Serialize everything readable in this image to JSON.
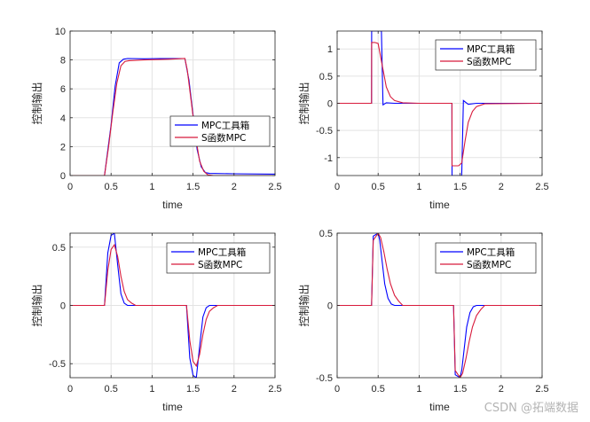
{
  "colors": {
    "series_mpc": "#0000ff",
    "series_s": "#d81b3c",
    "grid": "#e3e3e3",
    "axis": "#262626",
    "background": "#ffffff"
  },
  "watermark": "CSDN @拓端数据",
  "chart_data": [
    {
      "type": "line",
      "xlabel": "time",
      "ylabel": "控制输出",
      "xlim": [
        0,
        2.5
      ],
      "ylim": [
        0,
        10
      ],
      "xticks": [
        0,
        0.5,
        1,
        1.5,
        2,
        2.5
      ],
      "yticks": [
        0,
        2,
        4,
        6,
        8,
        10
      ],
      "xtick_labels": [
        "0",
        "0.5",
        "1",
        "1.5",
        "2",
        "2.5"
      ],
      "ytick_labels": [
        "0",
        "2",
        "4",
        "6",
        "8",
        "10"
      ],
      "legend_position": "middle-right",
      "grid": true,
      "series": [
        {
          "name": "MPC工具箱",
          "color": "#0000ff",
          "x": [
            0,
            0.42,
            0.5,
            0.55,
            0.6,
            0.65,
            0.7,
            0.9,
            1.1,
            1.3,
            1.4,
            1.45,
            1.5,
            1.55,
            1.6,
            1.65,
            1.7,
            2.0,
            2.5
          ],
          "y": [
            0,
            0,
            3.5,
            6.2,
            7.8,
            8.05,
            8.1,
            8.08,
            8.1,
            8.1,
            8.1,
            6.6,
            4.2,
            1.8,
            0.6,
            0.2,
            0.15,
            0.12,
            0.1
          ]
        },
        {
          "name": "S函数MPC",
          "color": "#d81b3c",
          "x": [
            0,
            0.42,
            0.47,
            0.52,
            0.57,
            0.62,
            0.67,
            0.72,
            0.9,
            1.2,
            1.4,
            1.43,
            1.48,
            1.53,
            1.58,
            1.63,
            1.68,
            1.75,
            2.5
          ],
          "y": [
            0,
            0,
            2.0,
            4.3,
            6.4,
            7.6,
            7.9,
            7.95,
            8.0,
            8.05,
            8.1,
            7.3,
            5.0,
            2.7,
            1.0,
            0.3,
            0.05,
            0,
            0
          ]
        }
      ]
    },
    {
      "type": "line",
      "xlabel": "time",
      "ylabel": "控制输出",
      "xlim": [
        0,
        2.5
      ],
      "ylim": [
        -1.33,
        1.33
      ],
      "xticks": [
        0,
        0.5,
        1,
        1.5,
        2,
        2.5
      ],
      "yticks": [
        -1,
        -0.5,
        0,
        0.5,
        1
      ],
      "xtick_labels": [
        "0",
        "0.5",
        "1",
        "1.5",
        "2",
        "2.5"
      ],
      "ytick_labels": [
        "-1",
        "-0.5",
        "0",
        "0.5",
        "1"
      ],
      "legend_position": "top-right",
      "grid": true,
      "series": [
        {
          "name": "MPC工具箱",
          "color": "#0000ff",
          "x": [
            0,
            0.42,
            0.421,
            0.54,
            0.56,
            0.6,
            0.7,
            1.0,
            1.4,
            1.401,
            1.52,
            1.54,
            1.6,
            1.7,
            2.0,
            2.5
          ],
          "y": [
            0,
            0,
            1.33,
            1.33,
            -0.03,
            0.01,
            0.0,
            0.0,
            0.0,
            -1.33,
            -1.33,
            0.05,
            -0.02,
            0.0,
            0.0,
            0.0
          ]
        },
        {
          "name": "S函数MPC",
          "color": "#d81b3c",
          "x": [
            0,
            0.42,
            0.421,
            0.46,
            0.5,
            0.55,
            0.6,
            0.65,
            0.7,
            0.8,
            1.0,
            1.4,
            1.401,
            1.48,
            1.52,
            1.56,
            1.6,
            1.65,
            1.7,
            1.8,
            2.5
          ],
          "y": [
            0,
            0,
            1.12,
            1.12,
            1.1,
            0.7,
            0.3,
            0.12,
            0.05,
            0.01,
            0.0,
            0.0,
            -1.15,
            -1.15,
            -1.1,
            -0.7,
            -0.35,
            -0.15,
            -0.06,
            -0.01,
            0.0
          ]
        }
      ]
    },
    {
      "type": "line",
      "xlabel": "time",
      "ylabel": "控制输出",
      "xlim": [
        0,
        2.5
      ],
      "ylim": [
        -0.62,
        0.62
      ],
      "xticks": [
        0,
        0.5,
        1,
        1.5,
        2,
        2.5
      ],
      "yticks": [
        -0.5,
        0,
        0.5
      ],
      "xtick_labels": [
        "0",
        "0.5",
        "1",
        "1.5",
        "2",
        "2.5"
      ],
      "ytick_labels": [
        "-0.5",
        "0",
        "0.5"
      ],
      "legend_position": "top-right",
      "grid": true,
      "series": [
        {
          "name": "MPC工具箱",
          "color": "#0000ff",
          "x": [
            0,
            0.42,
            0.46,
            0.5,
            0.54,
            0.58,
            0.62,
            0.66,
            0.7,
            0.8,
            1.0,
            1.42,
            1.46,
            1.5,
            1.54,
            1.58,
            1.62,
            1.66,
            1.7,
            1.8,
            2.5
          ],
          "y": [
            0,
            0,
            0.45,
            0.6,
            0.62,
            0.35,
            0.1,
            0.02,
            0.0,
            0.0,
            0.0,
            0.0,
            -0.45,
            -0.6,
            -0.62,
            -0.35,
            -0.1,
            -0.02,
            0.0,
            0.0,
            0.0
          ]
        },
        {
          "name": "S函数MPC",
          "color": "#d81b3c",
          "x": [
            0,
            0.42,
            0.46,
            0.5,
            0.54,
            0.58,
            0.62,
            0.66,
            0.7,
            0.75,
            0.8,
            1.0,
            1.42,
            1.46,
            1.5,
            1.54,
            1.58,
            1.62,
            1.66,
            1.7,
            1.75,
            1.8,
            2.5
          ],
          "y": [
            0,
            0,
            0.3,
            0.48,
            0.52,
            0.42,
            0.25,
            0.12,
            0.05,
            0.02,
            0.0,
            0.0,
            0.0,
            -0.3,
            -0.48,
            -0.52,
            -0.42,
            -0.25,
            -0.12,
            -0.05,
            -0.02,
            0.0,
            0.0
          ]
        }
      ]
    },
    {
      "type": "line",
      "xlabel": "time",
      "ylabel": "控制输出",
      "xlim": [
        0,
        2.5
      ],
      "ylim": [
        -0.5,
        0.5
      ],
      "xticks": [
        0,
        0.5,
        1,
        1.5,
        2,
        2.5
      ],
      "yticks": [
        -0.5,
        0,
        0.5
      ],
      "xtick_labels": [
        "0",
        "0.5",
        "1",
        "1.5",
        "2",
        "2.5"
      ],
      "ytick_labels": [
        "-0.5",
        "0",
        "0.5"
      ],
      "legend_position": "top-right",
      "grid": true,
      "series": [
        {
          "name": "MPC工具箱",
          "color": "#0000ff",
          "x": [
            0,
            0.42,
            0.44,
            0.5,
            0.52,
            0.55,
            0.58,
            0.62,
            0.66,
            0.7,
            1.0,
            1.42,
            1.44,
            1.5,
            1.52,
            1.55,
            1.58,
            1.62,
            1.66,
            1.7,
            2.5
          ],
          "y": [
            0,
            0,
            0.48,
            0.5,
            0.45,
            0.3,
            0.15,
            0.05,
            0.01,
            0.0,
            0.0,
            0.0,
            -0.48,
            -0.5,
            -0.45,
            -0.3,
            -0.15,
            -0.05,
            -0.01,
            0.0,
            0.0
          ]
        },
        {
          "name": "S函数MPC",
          "color": "#d81b3c",
          "x": [
            0,
            0.42,
            0.44,
            0.5,
            0.53,
            0.57,
            0.61,
            0.65,
            0.7,
            0.75,
            0.8,
            1.0,
            1.42,
            1.44,
            1.5,
            1.53,
            1.57,
            1.61,
            1.65,
            1.7,
            1.75,
            1.8,
            2.5
          ],
          "y": [
            0,
            0,
            0.45,
            0.5,
            0.47,
            0.37,
            0.25,
            0.15,
            0.07,
            0.03,
            0.0,
            0.0,
            0.0,
            -0.45,
            -0.5,
            -0.47,
            -0.37,
            -0.25,
            -0.15,
            -0.07,
            -0.03,
            0.0,
            0.0
          ]
        }
      ]
    }
  ]
}
